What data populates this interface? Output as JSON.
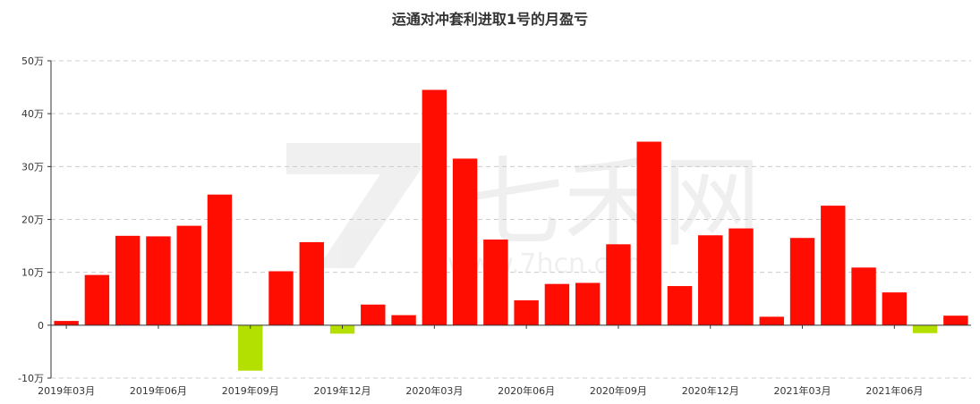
{
  "chart_data": {
    "type": "bar",
    "title": "运通对冲套利进取1号的月盈亏",
    "xlabel": "",
    "ylabel": "",
    "ylim": [
      -10,
      50
    ],
    "yticks": [
      "-10万",
      "0",
      "10万",
      "20万",
      "30万",
      "40万",
      "50万"
    ],
    "y_tick_values": [
      -10,
      0,
      10,
      20,
      30,
      40,
      50
    ],
    "x_tick_labels": [
      "2019年03月",
      "2019年06月",
      "2019年09月",
      "2019年12月",
      "2020年03月",
      "2020年06月",
      "2020年09月",
      "2020年12月",
      "2021年03月",
      "2021年06月"
    ],
    "categories": [
      "2019年03月",
      "2019年04月",
      "2019年05月",
      "2019年06月",
      "2019年07月",
      "2019年08月",
      "2019年09月",
      "2019年10月",
      "2019年11月",
      "2019年12月",
      "2020年01月",
      "2020年02月",
      "2020年03月",
      "2020年04月",
      "2020年05月",
      "2020年06月",
      "2020年07月",
      "2020年08月",
      "2020年09月",
      "2020年10月",
      "2020年11月",
      "2020年12月",
      "2021年01月",
      "2021年02月",
      "2021年03月",
      "2021年04月",
      "2021年05月",
      "2021年06月",
      "2021年07月",
      "2021年08月"
    ],
    "values": [
      0.8,
      9.5,
      16.9,
      16.8,
      18.8,
      24.7,
      -8.6,
      10.2,
      15.7,
      -1.6,
      3.9,
      1.9,
      44.5,
      31.5,
      16.2,
      4.7,
      7.8,
      8.0,
      15.3,
      34.7,
      7.4,
      17.0,
      18.3,
      1.6,
      16.5,
      22.6,
      10.9,
      6.2,
      -1.5,
      1.8
    ],
    "units": "万",
    "grid": true,
    "legend": "none",
    "colors": {
      "positive": "#ff0d00",
      "negative": "#b3e000",
      "grid": "#cccccc",
      "axis": "#333333"
    }
  },
  "watermark": {
    "text": "七禾网",
    "url": "www.7hcn.com"
  }
}
